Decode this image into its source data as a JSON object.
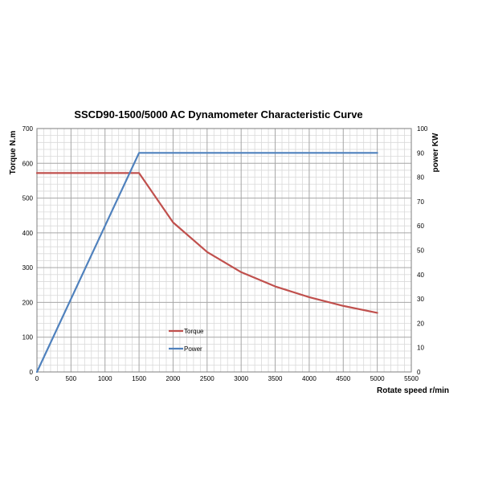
{
  "chart_data": {
    "type": "line",
    "title": "SSCD90-1500/5000 AC Dynamometer Characteristic Curve",
    "xlabel": "Rotate speed r/min",
    "ylabel_left": "Torque N.m",
    "ylabel_right": "power KW",
    "xlim": [
      0,
      5500
    ],
    "ylim_left": [
      0,
      700
    ],
    "ylim_right": [
      0,
      100
    ],
    "x_ticks": [
      0,
      500,
      1000,
      1500,
      2000,
      2500,
      3000,
      3500,
      4000,
      4500,
      5000,
      5500
    ],
    "y_left_ticks": [
      0,
      100,
      200,
      300,
      400,
      500,
      600,
      700
    ],
    "y_right_ticks": [
      0,
      10,
      20,
      30,
      40,
      50,
      60,
      70,
      80,
      90,
      100
    ],
    "grid": true,
    "legend_position": "bottom-center",
    "series": [
      {
        "name": "Torque",
        "axis": "left",
        "color": "#c0504d",
        "x": [
          0,
          1500,
          2000,
          2500,
          3000,
          3500,
          4000,
          4500,
          5000
        ],
        "values": [
          572,
          572,
          430,
          345,
          287,
          246,
          215,
          190,
          170
        ]
      },
      {
        "name": "Power",
        "axis": "right",
        "color": "#4f81bd",
        "x": [
          0,
          1500,
          5000
        ],
        "values": [
          0,
          90,
          90
        ]
      }
    ]
  }
}
